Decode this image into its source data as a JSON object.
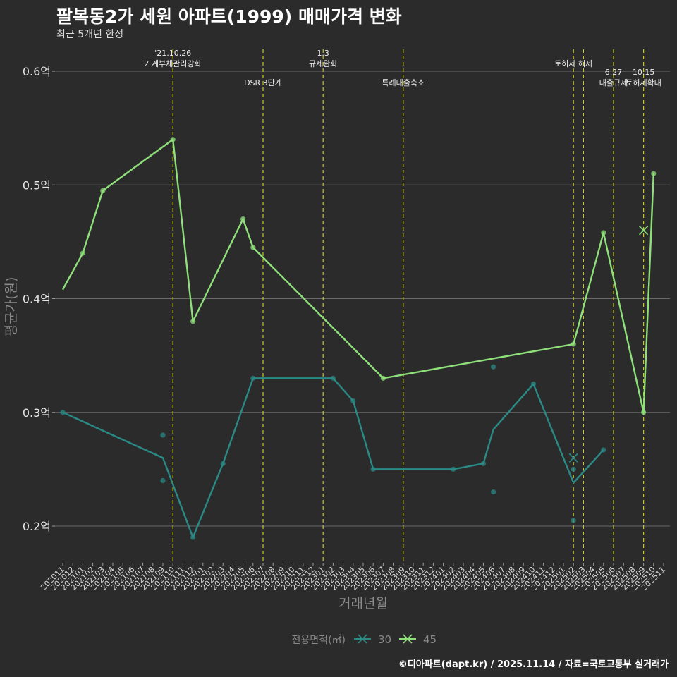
{
  "chart_data": {
    "type": "line",
    "title": "팔복동2가 세원 아파트(1999) 매매가격 변화",
    "subtitle": "최근 5개년 한정",
    "xlabel": "거래년월",
    "ylabel": "평균가(원)",
    "ylim": [
      0.17,
      0.62
    ],
    "yticks": [
      0.2,
      0.3,
      0.4,
      0.5,
      0.6
    ],
    "ytick_labels": [
      "0.2억",
      "0.3억",
      "0.4억",
      "0.5억",
      "0.6억"
    ],
    "categories": [
      "202011",
      "202012",
      "202101",
      "202102",
      "202103",
      "202104",
      "202105",
      "202106",
      "202107",
      "202108",
      "202109",
      "202110",
      "202111",
      "202112",
      "202201",
      "202202",
      "202203",
      "202204",
      "202205",
      "202206",
      "202207",
      "202208",
      "202209",
      "202210",
      "202211",
      "202212",
      "202301",
      "202302",
      "202303",
      "202304",
      "202305",
      "202306",
      "202307",
      "202308",
      "202309",
      "202310",
      "202311",
      "202312",
      "202401",
      "202402",
      "202403",
      "202404",
      "202405",
      "202406",
      "202407",
      "202408",
      "202409",
      "202410",
      "202411",
      "202412",
      "202501",
      "202502",
      "202503",
      "202504",
      "202505",
      "202506",
      "202507",
      "202508",
      "202509",
      "202510",
      "202511"
    ],
    "legend_title": "전용면적(㎡)",
    "legend_position": "bottom",
    "series": [
      {
        "name": "30",
        "color": "#2a8a86",
        "line": [
          {
            "x": "202011",
            "y": 0.3
          },
          {
            "x": "202109",
            "y": 0.26
          },
          {
            "x": "202112",
            "y": 0.19
          },
          {
            "x": "202203",
            "y": 0.255
          },
          {
            "x": "202206",
            "y": 0.33
          },
          {
            "x": "202302",
            "y": 0.33
          },
          {
            "x": "202304",
            "y": 0.31
          },
          {
            "x": "202306",
            "y": 0.25
          },
          {
            "x": "202402",
            "y": 0.25
          },
          {
            "x": "202405",
            "y": 0.255
          },
          {
            "x": "202406",
            "y": 0.285
          },
          {
            "x": "202410",
            "y": 0.325
          },
          {
            "x": "202502",
            "y": 0.238
          },
          {
            "x": "202505",
            "y": 0.267
          }
        ],
        "points": [
          {
            "x": "202011",
            "y": 0.3
          },
          {
            "x": "202109",
            "y": 0.28
          },
          {
            "x": "202109",
            "y": 0.24
          },
          {
            "x": "202112",
            "y": 0.19
          },
          {
            "x": "202203",
            "y": 0.255
          },
          {
            "x": "202206",
            "y": 0.33
          },
          {
            "x": "202302",
            "y": 0.33
          },
          {
            "x": "202304",
            "y": 0.31
          },
          {
            "x": "202306",
            "y": 0.25
          },
          {
            "x": "202402",
            "y": 0.25
          },
          {
            "x": "202405",
            "y": 0.255
          },
          {
            "x": "202406",
            "y": 0.34
          },
          {
            "x": "202406",
            "y": 0.23
          },
          {
            "x": "202410",
            "y": 0.325
          },
          {
            "x": "202502",
            "y": 0.25
          },
          {
            "x": "202502",
            "y": 0.205
          },
          {
            "x": "202505",
            "y": 0.267
          }
        ],
        "cross_points": [
          {
            "x": "202502",
            "y": 0.26
          }
        ]
      },
      {
        "name": "45",
        "color": "#8fe07a",
        "line": [
          {
            "x": "202011",
            "y": 0.408
          },
          {
            "x": "202101",
            "y": 0.44
          },
          {
            "x": "202103",
            "y": 0.495
          },
          {
            "x": "202110",
            "y": 0.54
          },
          {
            "x": "202112",
            "y": 0.38
          },
          {
            "x": "202205",
            "y": 0.47
          },
          {
            "x": "202206",
            "y": 0.445
          },
          {
            "x": "202307",
            "y": 0.33
          },
          {
            "x": "202502",
            "y": 0.36
          },
          {
            "x": "202505",
            "y": 0.458
          },
          {
            "x": "202509",
            "y": 0.3
          },
          {
            "x": "202510",
            "y": 0.51
          }
        ],
        "points": [
          {
            "x": "202101",
            "y": 0.44
          },
          {
            "x": "202103",
            "y": 0.495
          },
          {
            "x": "202110",
            "y": 0.54
          },
          {
            "x": "202112",
            "y": 0.38
          },
          {
            "x": "202205",
            "y": 0.47
          },
          {
            "x": "202206",
            "y": 0.445
          },
          {
            "x": "202307",
            "y": 0.33
          },
          {
            "x": "202502",
            "y": 0.36
          },
          {
            "x": "202505",
            "y": 0.458
          },
          {
            "x": "202509",
            "y": 0.3
          },
          {
            "x": "202510",
            "y": 0.51
          }
        ],
        "cross_points": [
          {
            "x": "202509",
            "y": 0.46
          }
        ]
      }
    ],
    "events": [
      {
        "x": "202110",
        "lines": [
          "'21.10.26",
          "가계부채관리강화"
        ],
        "tier": 0
      },
      {
        "x": "202207",
        "lines": [
          "DSR 3단계"
        ],
        "tier": 1
      },
      {
        "x": "202301",
        "lines": [
          "1.3",
          "규제완화"
        ],
        "tier": 0
      },
      {
        "x": "202309",
        "lines": [
          "특례대출축소"
        ],
        "tier": 1
      },
      {
        "x": "202502",
        "lines": [
          "토허제 해제"
        ],
        "tier": 0
      },
      {
        "x": "202503",
        "lines": [],
        "tier": 0
      },
      {
        "x": "202506",
        "lines": [
          "6.27",
          "대출규제"
        ],
        "tier": 1
      },
      {
        "x": "202509",
        "lines": [
          "10.15",
          "토허제확대"
        ],
        "tier": 1
      }
    ],
    "event_color": "#c8c81e"
  },
  "caption": "©디아파트(dapt.kr) / 2025.11.14 / 자료=국토교통부 실거래가"
}
